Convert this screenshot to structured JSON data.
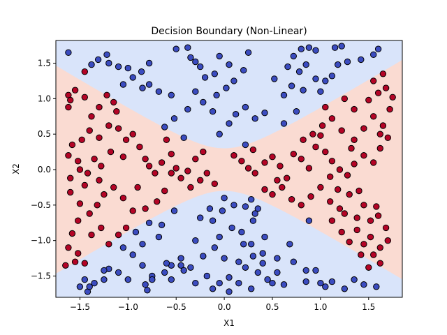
{
  "chart_data": {
    "type": "scatter",
    "title": "Decision Boundary (Non-Linear)",
    "xlabel": "X1",
    "ylabel": "X2",
    "xlim": [
      -1.75,
      1.85
    ],
    "ylim": [
      -1.8,
      1.82
    ],
    "x_ticks": [
      -1.5,
      -1.0,
      -0.5,
      0.0,
      0.5,
      1.0,
      1.5
    ],
    "y_ticks": [
      -1.5,
      -1.0,
      -0.5,
      0.0,
      0.5,
      1.0,
      1.5
    ],
    "x_tick_labels": [
      "−1.5",
      "−1.0",
      "−0.5",
      "0.0",
      "0.5",
      "1.0",
      "1.5"
    ],
    "y_tick_labels": [
      "−1.5",
      "−1.0",
      "−0.5",
      "0.0",
      "0.5",
      "1.0",
      "1.5"
    ],
    "grid": false,
    "legend": "none",
    "colors": {
      "class_0_point": "#3b4cc0",
      "class_1_point": "#b40426",
      "class_0_region": "#d9e4fa",
      "class_1_region": "#fadbd2",
      "marker_edge": "#000000"
    },
    "boundary": {
      "a": 0.3,
      "b": 0.82
    },
    "series": [
      {
        "class": 0,
        "points": [
          [
            -1.62,
            1.65
          ],
          [
            -1.38,
            1.48
          ],
          [
            -1.31,
            1.55
          ],
          [
            -1.22,
            1.62
          ],
          [
            -1.2,
            1.5
          ],
          [
            -1.1,
            1.45
          ],
          [
            -1.0,
            1.43
          ],
          [
            -0.86,
            1.38
          ],
          [
            -0.78,
            1.5
          ],
          [
            -0.85,
            1.15
          ],
          [
            -0.78,
            1.2
          ],
          [
            -0.68,
            1.1
          ],
          [
            -0.55,
            1.05
          ],
          [
            -0.5,
            1.7
          ],
          [
            -0.38,
            1.72
          ],
          [
            -0.35,
            1.58
          ],
          [
            -0.3,
            1.52
          ],
          [
            -0.25,
            1.45
          ],
          [
            -0.2,
            1.3
          ],
          [
            -0.1,
            1.35
          ],
          [
            -0.05,
            1.6
          ],
          [
            0.05,
            1.48
          ],
          [
            0.1,
            1.25
          ],
          [
            0.2,
            1.4
          ],
          [
            0.25,
            1.65
          ],
          [
            0.02,
            1.15
          ],
          [
            -0.08,
            1.05
          ],
          [
            -0.3,
            1.1
          ],
          [
            -0.22,
            0.95
          ],
          [
            -0.38,
            0.85
          ],
          [
            -0.52,
            0.72
          ],
          [
            -0.62,
            0.6
          ],
          [
            -0.12,
            0.82
          ],
          [
            -0.05,
            0.5
          ],
          [
            0.05,
            0.65
          ],
          [
            0.12,
            0.78
          ],
          [
            0.22,
            0.88
          ],
          [
            0.32,
            0.72
          ],
          [
            0.42,
            0.8
          ],
          [
            0.62,
            0.65
          ],
          [
            0.75,
            0.82
          ],
          [
            0.62,
            1.05
          ],
          [
            0.7,
            1.18
          ],
          [
            0.52,
            1.28
          ],
          [
            0.66,
            1.45
          ],
          [
            0.72,
            1.6
          ],
          [
            0.8,
            1.7
          ],
          [
            0.88,
            1.72
          ],
          [
            0.95,
            1.68
          ],
          [
            0.85,
            1.48
          ],
          [
            0.95,
            1.28
          ],
          [
            1.0,
            1.1
          ],
          [
            1.05,
            1.25
          ],
          [
            1.12,
            1.32
          ],
          [
            1.18,
            1.48
          ],
          [
            1.28,
            1.52
          ],
          [
            1.42,
            1.55
          ],
          [
            1.55,
            1.62
          ],
          [
            1.6,
            1.7
          ],
          [
            1.15,
            1.72
          ],
          [
            1.22,
            1.74
          ],
          [
            0.78,
            1.38
          ],
          [
            0.82,
            1.12
          ],
          [
            -0.95,
            1.3
          ],
          [
            -1.05,
            1.2
          ],
          [
            -0.42,
            0.45
          ],
          [
            0.22,
            0.35
          ],
          [
            -0.15,
            -0.55
          ],
          [
            0.0,
            -0.4
          ],
          [
            0.1,
            -0.5
          ],
          [
            0.22,
            -0.52
          ],
          [
            0.28,
            -0.42
          ],
          [
            0.35,
            -0.55
          ],
          [
            -0.25,
            -0.68
          ],
          [
            -0.12,
            -0.72
          ],
          [
            -0.02,
            -0.58
          ],
          [
            0.08,
            -0.82
          ],
          [
            0.18,
            -0.88
          ],
          [
            0.3,
            -0.72
          ],
          [
            0.42,
            -0.95
          ],
          [
            0.4,
            -1.18
          ],
          [
            0.3,
            -1.22
          ],
          [
            0.2,
            -1.05
          ],
          [
            -0.05,
            -0.95
          ],
          [
            -0.1,
            -1.1
          ],
          [
            -0.3,
            -1.0
          ],
          [
            -0.45,
            -1.25
          ],
          [
            -0.55,
            -1.35
          ],
          [
            -0.62,
            -1.45
          ],
          [
            -0.75,
            -1.5
          ],
          [
            -0.85,
            -1.35
          ],
          [
            -0.95,
            -1.2
          ],
          [
            -1.05,
            -1.1
          ],
          [
            -0.92,
            -0.88
          ],
          [
            -0.78,
            -0.75
          ],
          [
            -0.65,
            -0.78
          ],
          [
            -0.68,
            -0.95
          ],
          [
            -0.85,
            -1.05
          ],
          [
            -1.0,
            -1.55
          ],
          [
            -1.1,
            -1.45
          ],
          [
            -1.2,
            -1.4
          ],
          [
            -1.25,
            -1.55
          ],
          [
            -1.35,
            -1.6
          ],
          [
            -1.45,
            -1.55
          ],
          [
            -1.5,
            -1.65
          ],
          [
            -1.42,
            -1.72
          ],
          [
            -0.82,
            -1.62
          ],
          [
            -0.8,
            -1.7
          ],
          [
            -0.55,
            -1.55
          ],
          [
            -0.45,
            -1.35
          ],
          [
            -0.35,
            -1.38
          ],
          [
            -0.18,
            -1.5
          ],
          [
            -0.05,
            -1.6
          ],
          [
            0.05,
            -1.52
          ],
          [
            0.22,
            -1.38
          ],
          [
            0.28,
            -1.68
          ],
          [
            0.45,
            -1.55
          ],
          [
            0.55,
            -1.45
          ],
          [
            0.62,
            -1.62
          ],
          [
            0.72,
            -1.3
          ],
          [
            0.85,
            -1.58
          ],
          [
            0.95,
            -1.42
          ],
          [
            1.05,
            -1.65
          ],
          [
            1.12,
            -1.58
          ],
          [
            1.25,
            -1.68
          ],
          [
            1.35,
            -1.55
          ],
          [
            1.45,
            -1.62
          ],
          [
            1.58,
            -1.65
          ],
          [
            -0.12,
            -1.68
          ],
          [
            0.05,
            -1.72
          ],
          [
            0.15,
            -1.6
          ],
          [
            0.35,
            -1.45
          ],
          [
            0.55,
            -1.25
          ],
          [
            0.68,
            -1.05
          ],
          [
            0.88,
            -0.72
          ],
          [
            -0.52,
            -0.58
          ],
          [
            0.0,
            -1.25
          ],
          [
            -0.22,
            -1.22
          ],
          [
            0.32,
            -0.62
          ],
          [
            -0.6,
            -1.32
          ],
          [
            0.15,
            -1.3
          ],
          [
            0.4,
            -1.32
          ],
          [
            0.28,
            -1.05
          ],
          [
            -0.3,
            -1.6
          ],
          [
            1.0,
            -1.6
          ],
          [
            -1.4,
            -1.65
          ],
          [
            -1.25,
            -1.42
          ],
          [
            -0.75,
            -1.55
          ],
          [
            -0.42,
            -1.42
          ],
          [
            0.5,
            -1.6
          ],
          [
            0.85,
            -1.42
          ]
        ]
      },
      {
        "class": 1,
        "points": [
          [
            -1.62,
            1.05
          ],
          [
            -1.6,
            0.98
          ],
          [
            -1.62,
            0.88
          ],
          [
            -1.55,
            1.12
          ],
          [
            -1.45,
            1.02
          ],
          [
            -1.38,
            0.75
          ],
          [
            -1.3,
            0.88
          ],
          [
            -1.22,
            1.05
          ],
          [
            -1.15,
            0.95
          ],
          [
            -1.12,
            0.82
          ],
          [
            -1.2,
            0.62
          ],
          [
            -1.1,
            0.58
          ],
          [
            -1.3,
            0.45
          ],
          [
            -1.4,
            0.55
          ],
          [
            -1.48,
            0.42
          ],
          [
            -1.58,
            0.35
          ],
          [
            -1.62,
            0.2
          ],
          [
            -1.52,
            0.12
          ],
          [
            -1.5,
            0.0
          ],
          [
            -1.42,
            -0.05
          ],
          [
            -1.35,
            0.15
          ],
          [
            -1.28,
            0.05
          ],
          [
            -1.18,
            0.25
          ],
          [
            -1.05,
            0.18
          ],
          [
            -1.02,
            0.42
          ],
          [
            -0.95,
            0.5
          ],
          [
            -0.88,
            0.32
          ],
          [
            -0.82,
            0.15
          ],
          [
            -0.78,
            0.05
          ],
          [
            -0.72,
            -0.05
          ],
          [
            -0.65,
            0.1
          ],
          [
            -0.55,
            0.22
          ],
          [
            -0.5,
            0.02
          ],
          [
            -0.45,
            -0.12
          ],
          [
            -0.38,
            -0.02
          ],
          [
            -0.35,
            -0.25
          ],
          [
            -0.25,
            -0.15
          ],
          [
            -0.18,
            -0.05
          ],
          [
            -0.1,
            -0.2
          ],
          [
            -0.3,
            0.15
          ],
          [
            -0.22,
            0.25
          ],
          [
            -0.62,
            -0.3
          ],
          [
            -0.7,
            -0.45
          ],
          [
            -0.82,
            -0.55
          ],
          [
            -0.95,
            -0.58
          ],
          [
            -1.05,
            -0.4
          ],
          [
            -1.15,
            -0.25
          ],
          [
            -1.25,
            -0.35
          ],
          [
            -1.32,
            -0.5
          ],
          [
            -1.4,
            -0.62
          ],
          [
            -1.52,
            -0.72
          ],
          [
            -1.58,
            -0.9
          ],
          [
            -1.62,
            -1.1
          ],
          [
            -1.52,
            -1.18
          ],
          [
            -1.55,
            -1.3
          ],
          [
            -1.45,
            -1.32
          ],
          [
            -1.65,
            -1.35
          ],
          [
            -1.38,
            -0.92
          ],
          [
            -1.28,
            -0.82
          ],
          [
            -1.2,
            -1.05
          ],
          [
            -1.1,
            -0.92
          ],
          [
            -1.02,
            -0.82
          ],
          [
            -1.6,
            -0.12
          ],
          [
            -1.6,
            -0.32
          ],
          [
            -1.45,
            -0.22
          ],
          [
            -1.3,
            -0.15
          ],
          [
            -0.6,
            0.42
          ],
          [
            0.1,
            0.2
          ],
          [
            0.18,
            0.12
          ],
          [
            0.25,
            0.02
          ],
          [
            0.32,
            -0.05
          ],
          [
            0.42,
            0.1
          ],
          [
            0.5,
            0.18
          ],
          [
            0.58,
            0.05
          ],
          [
            0.65,
            -0.12
          ],
          [
            0.72,
            0.22
          ],
          [
            0.8,
            0.15
          ],
          [
            0.88,
            0.02
          ],
          [
            0.95,
            0.32
          ],
          [
            1.05,
            0.25
          ],
          [
            1.12,
            0.12
          ],
          [
            1.2,
            0.0
          ],
          [
            1.28,
            -0.08
          ],
          [
            1.35,
            0.08
          ],
          [
            1.45,
            0.2
          ],
          [
            1.55,
            0.1
          ],
          [
            1.62,
            0.3
          ],
          [
            1.7,
            0.45
          ],
          [
            1.65,
            0.62
          ],
          [
            1.55,
            0.75
          ],
          [
            1.45,
            0.58
          ],
          [
            1.35,
            0.42
          ],
          [
            1.22,
            0.55
          ],
          [
            1.12,
            0.72
          ],
          [
            1.05,
            0.88
          ],
          [
            1.25,
            1.0
          ],
          [
            1.35,
            0.85
          ],
          [
            1.5,
            0.98
          ],
          [
            1.6,
            1.08
          ],
          [
            1.68,
            1.15
          ],
          [
            1.75,
            1.02
          ],
          [
            1.55,
            1.25
          ],
          [
            1.65,
            1.35
          ],
          [
            1.72,
            0.85
          ],
          [
            1.62,
            0.5
          ],
          [
            0.42,
            -0.28
          ],
          [
            0.5,
            -0.35
          ],
          [
            0.6,
            -0.25
          ],
          [
            0.7,
            -0.42
          ],
          [
            0.8,
            -0.5
          ],
          [
            0.9,
            -0.38
          ],
          [
            1.0,
            -0.25
          ],
          [
            1.1,
            -0.45
          ],
          [
            1.2,
            -0.55
          ],
          [
            1.3,
            -0.35
          ],
          [
            1.38,
            -0.68
          ],
          [
            1.45,
            -0.5
          ],
          [
            1.52,
            -0.72
          ],
          [
            1.6,
            -0.65
          ],
          [
            1.68,
            -0.82
          ],
          [
            1.7,
            -1.0
          ],
          [
            1.62,
            -1.1
          ],
          [
            1.55,
            -1.2
          ],
          [
            1.62,
            -1.32
          ],
          [
            1.5,
            -1.38
          ],
          [
            1.42,
            -1.2
          ],
          [
            1.3,
            -1.02
          ],
          [
            1.22,
            -0.88
          ],
          [
            1.12,
            -0.72
          ],
          [
            1.25,
            -0.62
          ],
          [
            1.38,
            -0.85
          ],
          [
            1.45,
            -1.05
          ],
          [
            1.52,
            -0.95
          ],
          [
            1.58,
            -0.52
          ],
          [
            0.82,
            0.42
          ],
          [
            0.92,
            0.5
          ],
          [
            1.02,
            0.62
          ],
          [
            1.1,
            -0.1
          ],
          [
            1.4,
            -0.3
          ],
          [
            0.55,
            -0.15
          ],
          [
            0.3,
            0.28
          ],
          [
            1.0,
            0.48
          ],
          [
            1.18,
            -0.28
          ],
          [
            1.32,
            0.3
          ],
          [
            -1.45,
            1.38
          ],
          [
            -1.5,
            -0.48
          ],
          [
            -0.9,
            -0.25
          ],
          [
            -0.55,
            -0.05
          ]
        ]
      }
    ]
  }
}
